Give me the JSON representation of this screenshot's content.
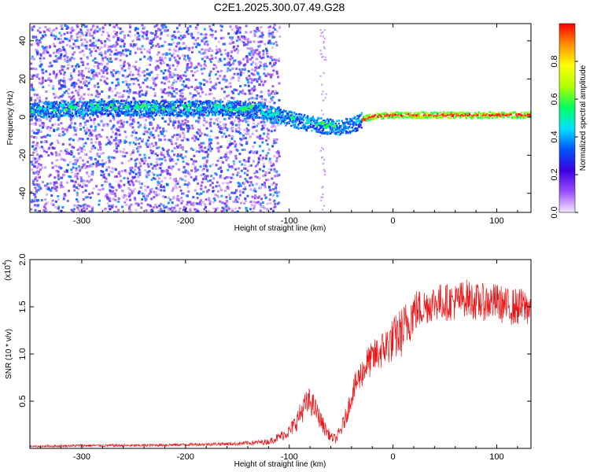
{
  "title": "C2E1.2025.300.07.49.G28",
  "chart_data": [
    {
      "type": "heatmap",
      "name": "spectrogram",
      "xlabel": "Height of straight line (km)",
      "ylabel": "Frequency (Hz)",
      "xlim": [
        -350,
        133
      ],
      "ylim": [
        -50,
        49
      ],
      "xticks": [
        "-300",
        "-200",
        "-100",
        "0",
        "100"
      ],
      "xtick_values": [
        -300,
        -200,
        -100,
        0,
        100
      ],
      "yticks": [
        "-40",
        "-20",
        "0",
        "20",
        "40"
      ],
      "ytick_values": [
        -40,
        -20,
        0,
        20,
        40
      ],
      "colorbar": {
        "label": "Normalized spectral amplitude",
        "range": [
          0,
          1
        ],
        "ticks": [
          "0.0",
          "0.2",
          "0.4",
          "0.6",
          "0.8"
        ],
        "tick_values": [
          0.0,
          0.2,
          0.4,
          0.6,
          0.8
        ],
        "colormap": [
          "#f4e6ff",
          "#9b4dff",
          "#3a00e0",
          "#0055ff",
          "#00e0ff",
          "#00ff60",
          "#b0ff00",
          "#ffff00",
          "#ff9000",
          "#ff0000"
        ]
      },
      "ridge": {
        "x": [
          -350,
          -300,
          -250,
          -200,
          -150,
          -130,
          -110,
          -90,
          -70,
          -55,
          -40,
          -30,
          -20,
          0,
          50,
          133
        ],
        "y": [
          4,
          5,
          5,
          5,
          5,
          4,
          1,
          -2,
          -4,
          -5,
          -4,
          -1,
          1,
          1.5,
          1.5,
          1.5
        ]
      },
      "noise_extent_km": -120
    },
    {
      "type": "line",
      "name": "snr",
      "xlabel": "Height of straight line (km)",
      "ylabel": "SNR (10 * v/v)",
      "multiplier": "(x10",
      "multiplier_exp": "4",
      "xlim": [
        -350,
        133
      ],
      "ylim": [
        0,
        2.0
      ],
      "xticks": [
        "-300",
        "-200",
        "-100",
        "0",
        "100"
      ],
      "xtick_values": [
        -300,
        -200,
        -100,
        0,
        100
      ],
      "yticks": [
        "0.5",
        "1.0",
        "1.5",
        "2.0"
      ],
      "ytick_values": [
        0.5,
        1.0,
        1.5,
        2.0
      ],
      "color": "#e8191a",
      "series": [
        {
          "name": "SNR",
          "x": [
            -350,
            -300,
            -250,
            -200,
            -150,
            -120,
            -110,
            -100,
            -95,
            -90,
            -85,
            -80,
            -75,
            -70,
            -65,
            -60,
            -55,
            -50,
            -45,
            -40,
            -35,
            -30,
            -25,
            -20,
            -15,
            -10,
            -5,
            0,
            5,
            10,
            15,
            20,
            30,
            40,
            50,
            60,
            70,
            80,
            90,
            100,
            110,
            120,
            133
          ],
          "y": [
            0.02,
            0.03,
            0.03,
            0.04,
            0.05,
            0.07,
            0.12,
            0.18,
            0.25,
            0.35,
            0.45,
            0.5,
            0.42,
            0.3,
            0.2,
            0.12,
            0.1,
            0.2,
            0.35,
            0.55,
            0.7,
            0.8,
            0.9,
            0.95,
            1.0,
            1.05,
            1.1,
            1.15,
            1.2,
            1.25,
            1.35,
            1.45,
            1.5,
            1.55,
            1.55,
            1.55,
            1.6,
            1.55,
            1.55,
            1.55,
            1.5,
            1.5,
            1.5
          ],
          "spread": [
            0.01,
            0.015,
            0.015,
            0.015,
            0.02,
            0.03,
            0.05,
            0.07,
            0.1,
            0.12,
            0.14,
            0.15,
            0.12,
            0.1,
            0.08,
            0.05,
            0.05,
            0.08,
            0.1,
            0.12,
            0.15,
            0.16,
            0.18,
            0.18,
            0.2,
            0.2,
            0.22,
            0.24,
            0.26,
            0.28,
            0.26,
            0.24,
            0.2,
            0.2,
            0.2,
            0.2,
            0.2,
            0.2,
            0.2,
            0.2,
            0.2,
            0.2,
            0.2
          ]
        }
      ]
    }
  ]
}
